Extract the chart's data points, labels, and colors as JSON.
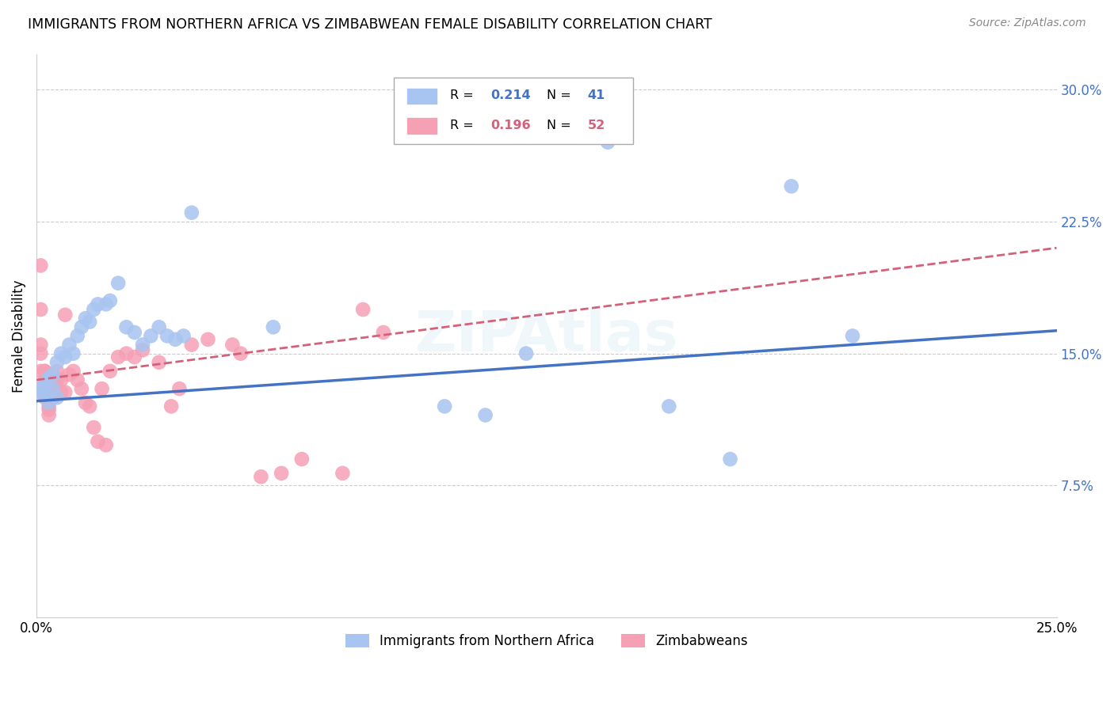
{
  "title": "IMMIGRANTS FROM NORTHERN AFRICA VS ZIMBABWEAN FEMALE DISABILITY CORRELATION CHART",
  "source": "Source: ZipAtlas.com",
  "ylabel": "Female Disability",
  "yticks": [
    0.075,
    0.15,
    0.225,
    0.3
  ],
  "ytick_labels": [
    "7.5%",
    "15.0%",
    "22.5%",
    "30.0%"
  ],
  "xlim": [
    0.0,
    0.25
  ],
  "ylim": [
    0.0,
    0.32
  ],
  "legend_r1": "0.214",
  "legend_n1": "41",
  "legend_r2": "0.196",
  "legend_n2": "52",
  "blue_color": "#a8c4f0",
  "blue_line_color": "#4472C4",
  "pink_color": "#f5a0b5",
  "pink_line_color": "#d4607a",
  "label1": "Immigrants from Northern Africa",
  "label2": "Zimbabweans",
  "blue_x": [
    0.001,
    0.001,
    0.002,
    0.002,
    0.003,
    0.003,
    0.004,
    0.004,
    0.005,
    0.005,
    0.006,
    0.007,
    0.008,
    0.009,
    0.01,
    0.011,
    0.012,
    0.013,
    0.014,
    0.015,
    0.017,
    0.018,
    0.02,
    0.022,
    0.024,
    0.026,
    0.028,
    0.03,
    0.032,
    0.034,
    0.036,
    0.038,
    0.058,
    0.1,
    0.11,
    0.12,
    0.14,
    0.155,
    0.17,
    0.185,
    0.2
  ],
  "blue_y": [
    0.13,
    0.128,
    0.133,
    0.127,
    0.136,
    0.122,
    0.138,
    0.13,
    0.145,
    0.125,
    0.15,
    0.148,
    0.155,
    0.15,
    0.16,
    0.165,
    0.17,
    0.168,
    0.175,
    0.178,
    0.178,
    0.18,
    0.19,
    0.165,
    0.162,
    0.155,
    0.16,
    0.165,
    0.16,
    0.158,
    0.16,
    0.23,
    0.165,
    0.12,
    0.115,
    0.15,
    0.27,
    0.12,
    0.09,
    0.245,
    0.16
  ],
  "pink_x": [
    0.001,
    0.001,
    0.001,
    0.001,
    0.001,
    0.002,
    0.002,
    0.002,
    0.002,
    0.002,
    0.002,
    0.003,
    0.003,
    0.003,
    0.003,
    0.004,
    0.004,
    0.004,
    0.005,
    0.005,
    0.006,
    0.006,
    0.007,
    0.007,
    0.008,
    0.009,
    0.01,
    0.011,
    0.012,
    0.013,
    0.014,
    0.015,
    0.016,
    0.017,
    0.018,
    0.02,
    0.022,
    0.024,
    0.026,
    0.03,
    0.033,
    0.035,
    0.038,
    0.042,
    0.048,
    0.05,
    0.055,
    0.06,
    0.065,
    0.075,
    0.08,
    0.085
  ],
  "pink_y": [
    0.2,
    0.175,
    0.155,
    0.15,
    0.14,
    0.14,
    0.133,
    0.128,
    0.125,
    0.14,
    0.135,
    0.13,
    0.12,
    0.118,
    0.115,
    0.128,
    0.135,
    0.125,
    0.14,
    0.135,
    0.135,
    0.128,
    0.172,
    0.128,
    0.138,
    0.14,
    0.135,
    0.13,
    0.122,
    0.12,
    0.108,
    0.1,
    0.13,
    0.098,
    0.14,
    0.148,
    0.15,
    0.148,
    0.152,
    0.145,
    0.12,
    0.13,
    0.155,
    0.158,
    0.155,
    0.15,
    0.08,
    0.082,
    0.09,
    0.082,
    0.175,
    0.162
  ]
}
